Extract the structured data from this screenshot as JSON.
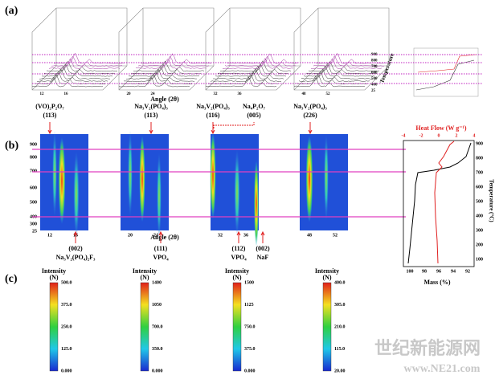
{
  "panel_labels": [
    "(a)",
    "(b)",
    "(c)"
  ],
  "panel_a": {
    "x_label": "Angle (2θ)",
    "z_label": "Temperature",
    "x_ticks": [
      [
        "12",
        "16"
      ],
      [
        "20",
        "24"
      ],
      [
        "32",
        "36"
      ],
      [
        "48",
        "52"
      ]
    ],
    "z_ticks": [
      "900",
      "800",
      "700",
      "600",
      "500",
      "400",
      "25"
    ]
  },
  "panel_b": {
    "x_label": "Angle (2θ)",
    "x_ticks": [
      [
        "12",
        "16"
      ],
      [
        "20",
        "24"
      ],
      [
        "32",
        "36"
      ],
      [
        "48",
        "52"
      ]
    ],
    "y_ticks": [
      "900",
      "800",
      "700",
      "600",
      "500",
      "400",
      "300",
      "25"
    ],
    "top_annotations": [
      [
        "(VO)₂P₂O₇",
        "(113)"
      ],
      [
        "Na₃V₂(PO₄)₃",
        "(113)"
      ],
      [
        "Na₃V₂(PO₄)₃",
        "(116)"
      ],
      [
        "Na₄P₂O₇",
        "(005)"
      ],
      [
        "Na₃V₂(PO₄)₃",
        "(226)"
      ]
    ],
    "bottom_annotations": [
      [
        "(002)",
        "Na₃V₂(PO₄)₂F₃"
      ],
      [
        "(111)",
        "VPO₄"
      ],
      [
        "(112)",
        "VPO₄"
      ],
      [
        "(002)",
        "NaF"
      ]
    ],
    "thermal": {
      "top_label": "Heat Flow (W g⁻¹)",
      "top_ticks": [
        "-4",
        "-2",
        "0",
        "2",
        "4"
      ],
      "right_label": "Temperature (°C)",
      "right_ticks": [
        "900",
        "800",
        "700",
        "600",
        "500",
        "400",
        "300",
        "200",
        "100"
      ],
      "bottom_label": "Mass (%)",
      "bottom_ticks": [
        "100",
        "98",
        "96",
        "94",
        "92"
      ]
    }
  },
  "panel_c": {
    "colorbars": [
      {
        "title": "Intensity",
        "unit": "(N)",
        "ticks": [
          "500.0",
          "375.0",
          "250.0",
          "125.0",
          "0.000"
        ]
      },
      {
        "title": "Intensity",
        "unit": "(N)",
        "ticks": [
          "1400",
          "1050",
          "700.0",
          "350.0",
          "0.000"
        ]
      },
      {
        "title": "Intensity",
        "unit": "(N)",
        "ticks": [
          "1500",
          "1125",
          "750.0",
          "375.0",
          "0.000"
        ]
      },
      {
        "title": "Intensity",
        "unit": "(N)",
        "ticks": [
          "400.0",
          "305.0",
          "210.0",
          "115.0",
          "20.00"
        ]
      }
    ]
  },
  "watermark": [
    "世纪新能源网",
    "www.NE21.com"
  ]
}
